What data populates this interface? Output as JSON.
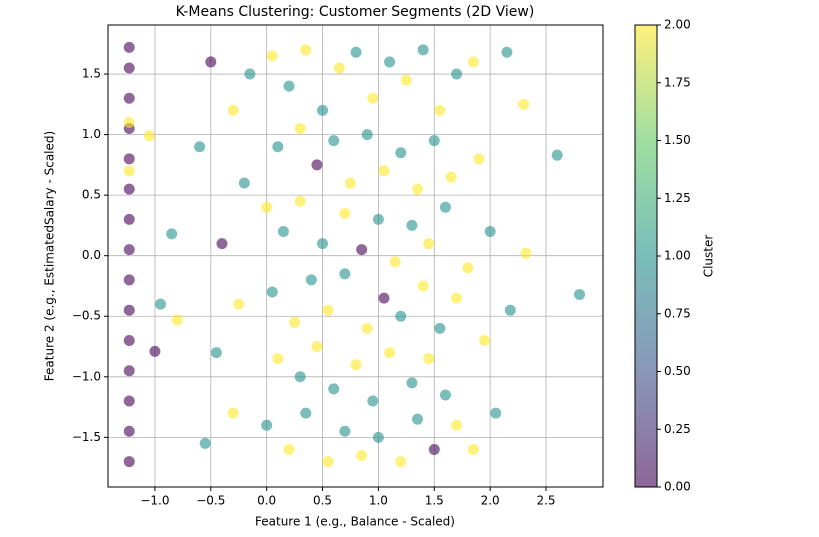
{
  "chart_data": {
    "type": "scatter",
    "title": "K-Means Clustering: Customer Segments (2D View)",
    "xlabel": "Feature 1 (e.g., Balance - Scaled)",
    "ylabel": "Feature 2 (e.g., EstimatedSalary - Scaled)",
    "colorbar_label": "Cluster",
    "x": [
      -1.23,
      -1.23,
      -1.23,
      -1.23,
      -1.23,
      -1.23,
      -1.23,
      -1.23,
      -1.23,
      -1.23,
      -1.23,
      -1.23,
      -1.23,
      -1.23,
      -1.23,
      -1.23,
      -1.23,
      0.05,
      0.2,
      0.35,
      0.5,
      0.65,
      0.8,
      0.95,
      1.1,
      1.25,
      1.4,
      1.55,
      1.7,
      0.1,
      0.3,
      0.45,
      0.6,
      0.75,
      0.9,
      1.05,
      1.2,
      1.35,
      1.5,
      1.65,
      0.0,
      0.15,
      0.3,
      0.5,
      0.7,
      0.85,
      1.0,
      1.15,
      1.3,
      1.45,
      1.6,
      0.05,
      0.25,
      0.4,
      0.55,
      0.7,
      0.9,
      1.05,
      1.2,
      1.4,
      1.55,
      1.7,
      0.1,
      0.3,
      0.45,
      0.6,
      0.8,
      0.95,
      1.1,
      1.3,
      1.45,
      1.6,
      0.0,
      0.2,
      0.35,
      0.55,
      0.7,
      0.85,
      1.0,
      1.2,
      1.35,
      1.5,
      1.7,
      -0.5,
      -0.3,
      -0.2,
      -0.4,
      -0.25,
      -0.45,
      -0.3,
      -0.55,
      -0.6,
      -0.15,
      1.85,
      1.9,
      2.0,
      1.95,
      2.05,
      1.85,
      2.15,
      1.8,
      2.6,
      2.8,
      -0.95,
      -1.0,
      -1.05,
      2.3,
      2.32,
      2.18,
      -0.85,
      -0.8
    ],
    "y": [
      -1.7,
      -1.45,
      -1.2,
      -0.95,
      -0.7,
      -0.45,
      -0.2,
      0.05,
      0.3,
      0.55,
      0.8,
      1.05,
      1.3,
      1.55,
      1.72,
      1.1,
      0.7,
      1.65,
      1.4,
      1.7,
      1.2,
      1.55,
      1.68,
      1.3,
      1.6,
      1.45,
      1.7,
      1.2,
      1.5,
      0.9,
      1.05,
      0.75,
      0.95,
      0.6,
      1.0,
      0.7,
      0.85,
      0.55,
      0.95,
      0.65,
      0.4,
      0.2,
      0.45,
      0.1,
      0.35,
      0.05,
      0.3,
      -0.05,
      0.25,
      0.1,
      0.4,
      -0.3,
      -0.55,
      -0.2,
      -0.45,
      -0.15,
      -0.6,
      -0.35,
      -0.5,
      -0.25,
      -0.6,
      -0.35,
      -0.85,
      -1.0,
      -0.75,
      -1.1,
      -0.9,
      -1.2,
      -0.8,
      -1.05,
      -0.85,
      -1.15,
      -1.4,
      -1.6,
      -1.3,
      -1.7,
      -1.45,
      -1.65,
      -1.5,
      -1.7,
      -1.35,
      -1.6,
      -1.4,
      1.6,
      1.2,
      0.6,
      0.1,
      -0.4,
      -0.8,
      -1.3,
      -1.55,
      0.9,
      1.5,
      1.6,
      0.8,
      0.2,
      -0.7,
      -1.3,
      -1.6,
      1.68,
      -0.1,
      0.83,
      -0.32,
      -0.4,
      -0.79,
      0.99,
      1.25,
      0.02,
      -0.45,
      0.18,
      -0.53
    ],
    "c": [
      0,
      0,
      0,
      0,
      0,
      0,
      0,
      0,
      0,
      0,
      0,
      0,
      0,
      0,
      0,
      2,
      2,
      2,
      1,
      2,
      1,
      2,
      1,
      2,
      1,
      2,
      1,
      2,
      1,
      1,
      2,
      0,
      1,
      2,
      1,
      2,
      1,
      2,
      1,
      2,
      2,
      1,
      2,
      1,
      2,
      0,
      1,
      2,
      1,
      2,
      1,
      1,
      2,
      1,
      2,
      1,
      2,
      0,
      1,
      2,
      1,
      2,
      2,
      1,
      2,
      1,
      2,
      1,
      2,
      1,
      2,
      1,
      1,
      2,
      1,
      2,
      1,
      2,
      1,
      2,
      1,
      0,
      2,
      0,
      2,
      1,
      0,
      2,
      1,
      2,
      1,
      1,
      1,
      2,
      2,
      1,
      2,
      1,
      2,
      1,
      2,
      1,
      1,
      1,
      0,
      2,
      2,
      2,
      1,
      1,
      2
    ],
    "colormap": [
      "#440154",
      "#3b528b",
      "#21918c",
      "#5ec962",
      "#fde725"
    ],
    "alpha": 0.6,
    "grid": true,
    "xlim": [
      -1.42,
      3.01
    ],
    "ylim": [
      -1.91,
      1.905
    ],
    "clim": [
      0,
      2
    ],
    "xticks": [
      {
        "value": -1,
        "label": "−1.0"
      },
      {
        "value": -0.5,
        "label": "−0.5"
      },
      {
        "value": 0,
        "label": "0.0"
      },
      0.5,
      {
        "value": 1,
        "label": "1.0"
      },
      1.5,
      {
        "value": 2,
        "label": "2.0"
      },
      2.5
    ],
    "yticks": [
      {
        "value": -1.5,
        "label": "−1.5"
      },
      {
        "value": -1,
        "label": "−1.0"
      },
      {
        "value": -0.5,
        "label": "−0.5"
      },
      {
        "value": 0,
        "label": "0.0"
      },
      0.5,
      {
        "value": 1,
        "label": "1.0"
      },
      1.5
    ],
    "cticks": [
      {
        "value": 0,
        "label": "0.00"
      },
      0.25,
      {
        "value": 0.5,
        "label": "0.50"
      },
      0.75,
      {
        "value": 1,
        "label": "1.00"
      },
      1.25,
      {
        "value": 1.5,
        "label": "1.50"
      },
      1.75,
      {
        "value": 2,
        "label": "2.00"
      }
    ]
  }
}
